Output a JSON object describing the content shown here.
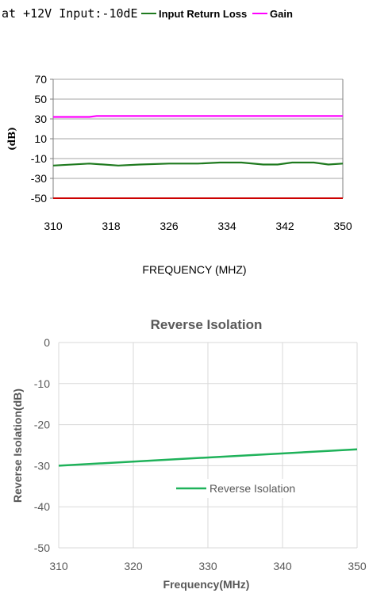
{
  "chart_data": [
    {
      "type": "line",
      "title": "",
      "header_text": "at +12V Input:-10dE",
      "xlabel": "FREQUENCY (MHZ)",
      "ylabel": "(dB)",
      "xlim": [
        310,
        350
      ],
      "ylim": [
        -50,
        70
      ],
      "xticks": [
        "310",
        "318",
        "326",
        "334",
        "342",
        "350"
      ],
      "yticks": [
        "70",
        "50",
        "30",
        "10",
        "-10",
        "-30",
        "-50"
      ],
      "grid": true,
      "legend_position": "top",
      "series": [
        {
          "name": "Input Return Loss",
          "color": "#1f7a1f",
          "x": [
            310,
            315,
            319,
            322,
            326,
            330,
            333,
            336,
            339,
            341,
            343,
            346,
            348,
            350
          ],
          "y": [
            -17,
            -15,
            -17,
            -16,
            -15,
            -15,
            -14,
            -14,
            -16,
            -16,
            -14,
            -14,
            -16,
            -15
          ]
        },
        {
          "name": "Gain",
          "color": "#ff00ff",
          "x": [
            310,
            315,
            316,
            350
          ],
          "y": [
            32,
            32,
            33,
            33
          ]
        }
      ],
      "baseline_color": "#cc0000"
    },
    {
      "type": "line",
      "title": "Reverse Isolation",
      "xlabel": "Frequency(MHz)",
      "ylabel": "Reverse Isolation(dB)",
      "xlim": [
        310,
        350
      ],
      "ylim": [
        -50,
        0
      ],
      "xticks": [
        "310",
        "320",
        "330",
        "340",
        "350"
      ],
      "yticks": [
        "0",
        "-10",
        "-20",
        "-30",
        "-40",
        "-50"
      ],
      "grid": true,
      "legend_position": "center-right",
      "series": [
        {
          "name": "Reverse Isolation",
          "color": "#1fb25a",
          "x": [
            310,
            350
          ],
          "y": [
            -30,
            -26
          ]
        }
      ]
    }
  ]
}
